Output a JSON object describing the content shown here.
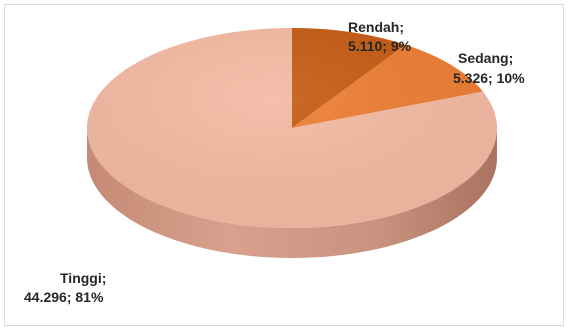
{
  "chart_data": {
    "type": "pie",
    "title": "",
    "style": "3d",
    "decimal_separator": ",",
    "thousands_separator": ".",
    "series": [
      {
        "values": [
          5110,
          5326,
          44296
        ],
        "percent": [
          9,
          10,
          81
        ]
      }
    ],
    "slices": [
      {
        "category": "Rendah;",
        "value_text": "5.110; 9%",
        "value": 5110,
        "percent": 9,
        "color": "#C55A11"
      },
      {
        "category": "Sedang;",
        "value_text": "5.326; 10%",
        "value": 5326,
        "percent": 10,
        "color": "#ED7D31"
      },
      {
        "category": "Tinggi;",
        "value_text": "44.296; 81%",
        "value": 44296,
        "percent": 81,
        "color": "#F4B9A2"
      }
    ],
    "legend": "none"
  }
}
